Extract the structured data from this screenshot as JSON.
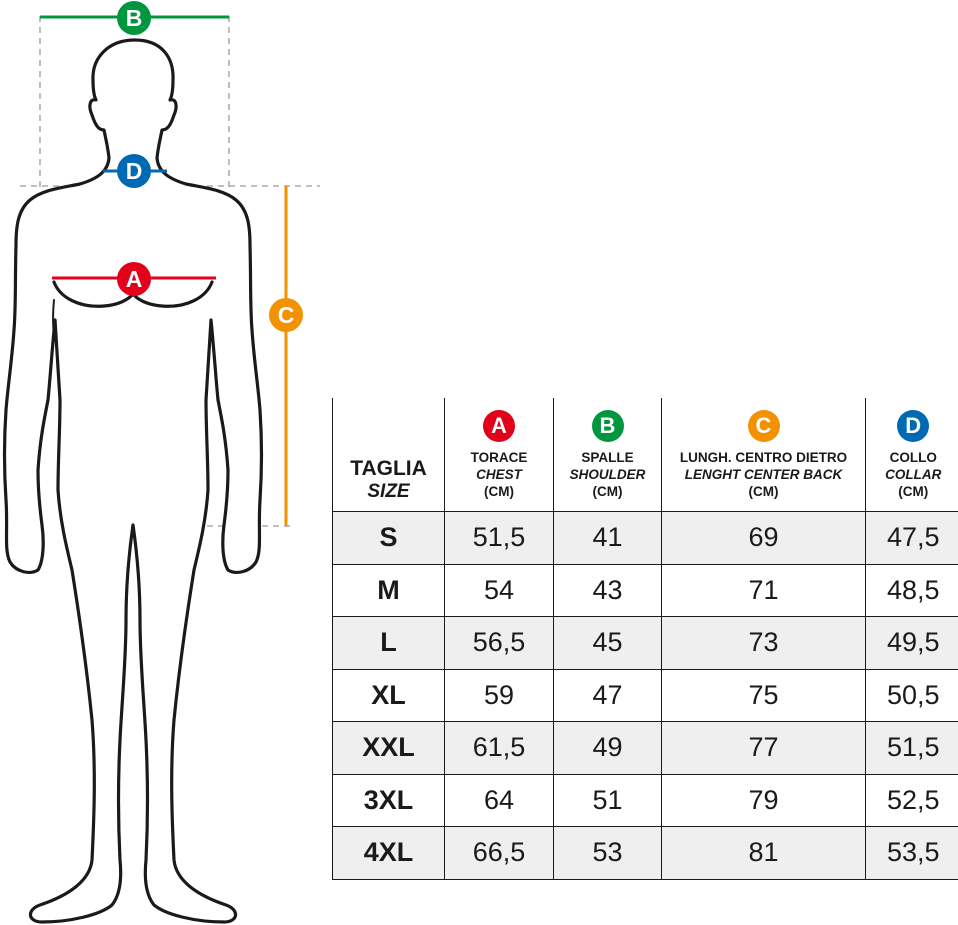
{
  "markers": {
    "A": {
      "letter": "A",
      "color": "#e2001a"
    },
    "B": {
      "letter": "B",
      "color": "#009640"
    },
    "C": {
      "letter": "C",
      "color": "#f39200"
    },
    "D": {
      "letter": "D",
      "color": "#0069b4"
    }
  },
  "table": {
    "size_header": {
      "it": "TAGLIA",
      "en": "SIZE"
    },
    "columns": [
      {
        "marker": "A",
        "it": "TORACE",
        "en": "CHEST",
        "unit": "(CM)"
      },
      {
        "marker": "B",
        "it": "SPALLE",
        "en": "SHOULDER",
        "unit": "(CM)"
      },
      {
        "marker": "C",
        "it": "LUNGH. CENTRO DIETRO",
        "en": "LENGHT CENTER BACK",
        "unit": "(CM)"
      },
      {
        "marker": "D",
        "it": "COLLO",
        "en": "COLLAR",
        "unit": "(CM)"
      }
    ],
    "rows": [
      {
        "size": "S",
        "values": [
          "51,5",
          "41",
          "69",
          "47,5"
        ]
      },
      {
        "size": "M",
        "values": [
          "54",
          "43",
          "71",
          "48,5"
        ]
      },
      {
        "size": "L",
        "values": [
          "56,5",
          "45",
          "73",
          "49,5"
        ]
      },
      {
        "size": "XL",
        "values": [
          "59",
          "47",
          "75",
          "50,5"
        ]
      },
      {
        "size": "XXL",
        "values": [
          "61,5",
          "49",
          "77",
          "51,5"
        ]
      },
      {
        "size": "3XL",
        "values": [
          "64",
          "51",
          "79",
          "52,5"
        ]
      },
      {
        "size": "4XL",
        "values": [
          "66,5",
          "53",
          "81",
          "53,5"
        ]
      }
    ]
  }
}
